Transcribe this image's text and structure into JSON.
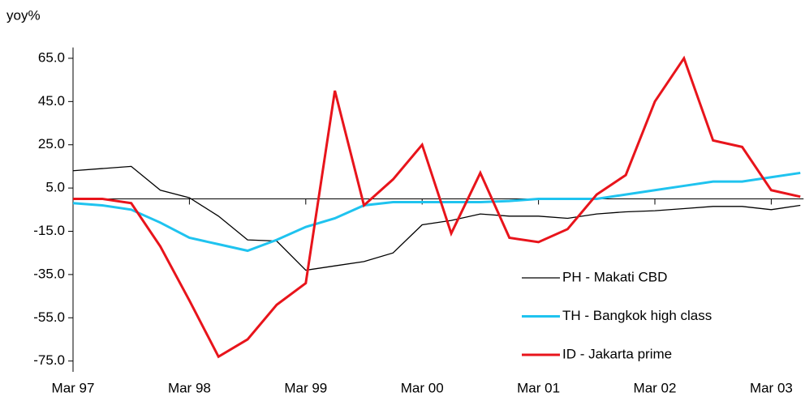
{
  "chart_data": {
    "type": "line",
    "y_label": "yoy%",
    "categories": [
      "Mar 97",
      null,
      null,
      null,
      "Mar 98",
      null,
      null,
      null,
      "Mar 99",
      null,
      null,
      null,
      "Mar 00",
      null,
      null,
      null,
      "Mar 01",
      null,
      null,
      null,
      "Mar 02",
      null,
      null,
      null,
      "Mar 03",
      null
    ],
    "series": [
      {
        "name": "PH - Makati CBD",
        "color": "#000000",
        "width": 1.3,
        "values": [
          13,
          14,
          15,
          4,
          0.5,
          -8,
          -19,
          -19.5,
          -33,
          -31,
          -29,
          -25,
          -12,
          -10,
          -7,
          -8,
          -8,
          -9,
          -7,
          -6,
          -5.5,
          -4.5,
          -3.5,
          -3.5,
          -5,
          -3
        ]
      },
      {
        "name": "TH - Bangkok high class",
        "color": "#1fc3ef",
        "width": 3,
        "values": [
          -2,
          -3,
          -5,
          -11,
          -18,
          -21,
          -24,
          -19,
          -13,
          -9,
          -3,
          -1.5,
          -1.5,
          -1.5,
          -1.5,
          -1,
          0,
          0,
          0,
          2,
          4,
          6,
          8,
          8,
          10,
          12
        ]
      },
      {
        "name": "ID - Jakarta prime",
        "color": "#e8141b",
        "width": 3,
        "values": [
          0,
          0,
          -2,
          -22,
          -47,
          -73,
          -65,
          -49,
          -39,
          50,
          -3,
          9,
          25,
          -16,
          12,
          -18,
          -20,
          -14,
          2,
          11,
          45,
          65,
          27,
          24,
          4,
          1
        ]
      }
    ],
    "ylim": [
      -80,
      70
    ],
    "yticks": [
      {
        "value": 65,
        "label": "65.0"
      },
      {
        "value": 45,
        "label": "45.0"
      },
      {
        "value": 25,
        "label": "25.0"
      },
      {
        "value": 5,
        "label": "5.0"
      },
      {
        "value": -15,
        "label": "-15.0"
      },
      {
        "value": -35,
        "label": "-35.0"
      },
      {
        "value": -55,
        "label": "-55.0"
      },
      {
        "value": -75,
        "label": "-75.0"
      }
    ],
    "legend": "lower right"
  }
}
